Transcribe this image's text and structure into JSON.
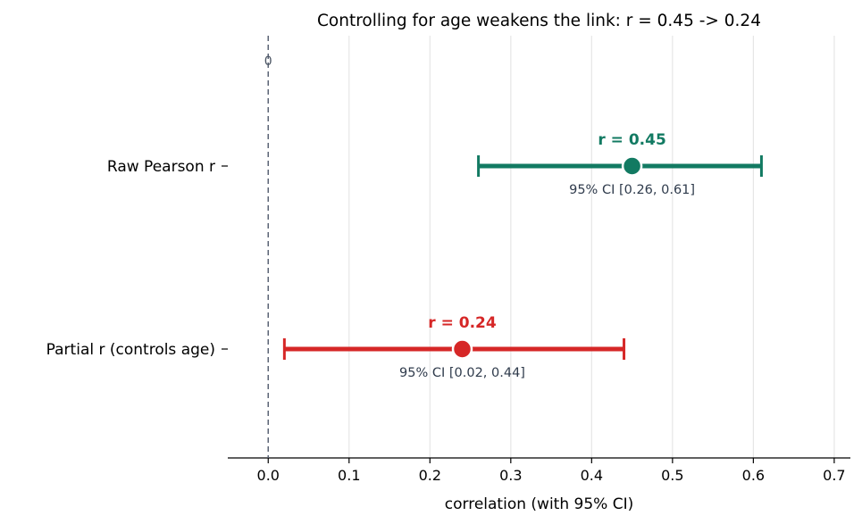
{
  "chart_data": {
    "type": "forest",
    "title": "Controlling for age weakens the link: r = 0.45 -> 0.24",
    "xlabel": "correlation (with 95% CI)",
    "ylabel": "",
    "xlim": [
      -0.05,
      0.72
    ],
    "xticks": [
      "0.0",
      "0.1",
      "0.2",
      "0.3",
      "0.4",
      "0.5",
      "0.6",
      "0.7"
    ],
    "xtick_values": [
      0,
      0.1,
      0.2,
      0.3,
      0.4,
      0.5,
      0.6,
      0.7
    ],
    "grid": "vertical",
    "reference_line": {
      "x": 0,
      "label": "0",
      "style": "dashed"
    },
    "series": [
      {
        "category": "Raw Pearson r",
        "estimate": 0.45,
        "ci_low": 0.26,
        "ci_high": 0.61,
        "value_label": "r = 0.45",
        "ci_label": "95% CI [0.26, 0.61]",
        "color": "#127a62"
      },
      {
        "category": "Partial r (controls age)",
        "estimate": 0.24,
        "ci_low": 0.02,
        "ci_high": 0.44,
        "value_label": "r = 0.24",
        "ci_label": "95% CI [0.02, 0.44]",
        "color": "#d62727"
      }
    ]
  }
}
